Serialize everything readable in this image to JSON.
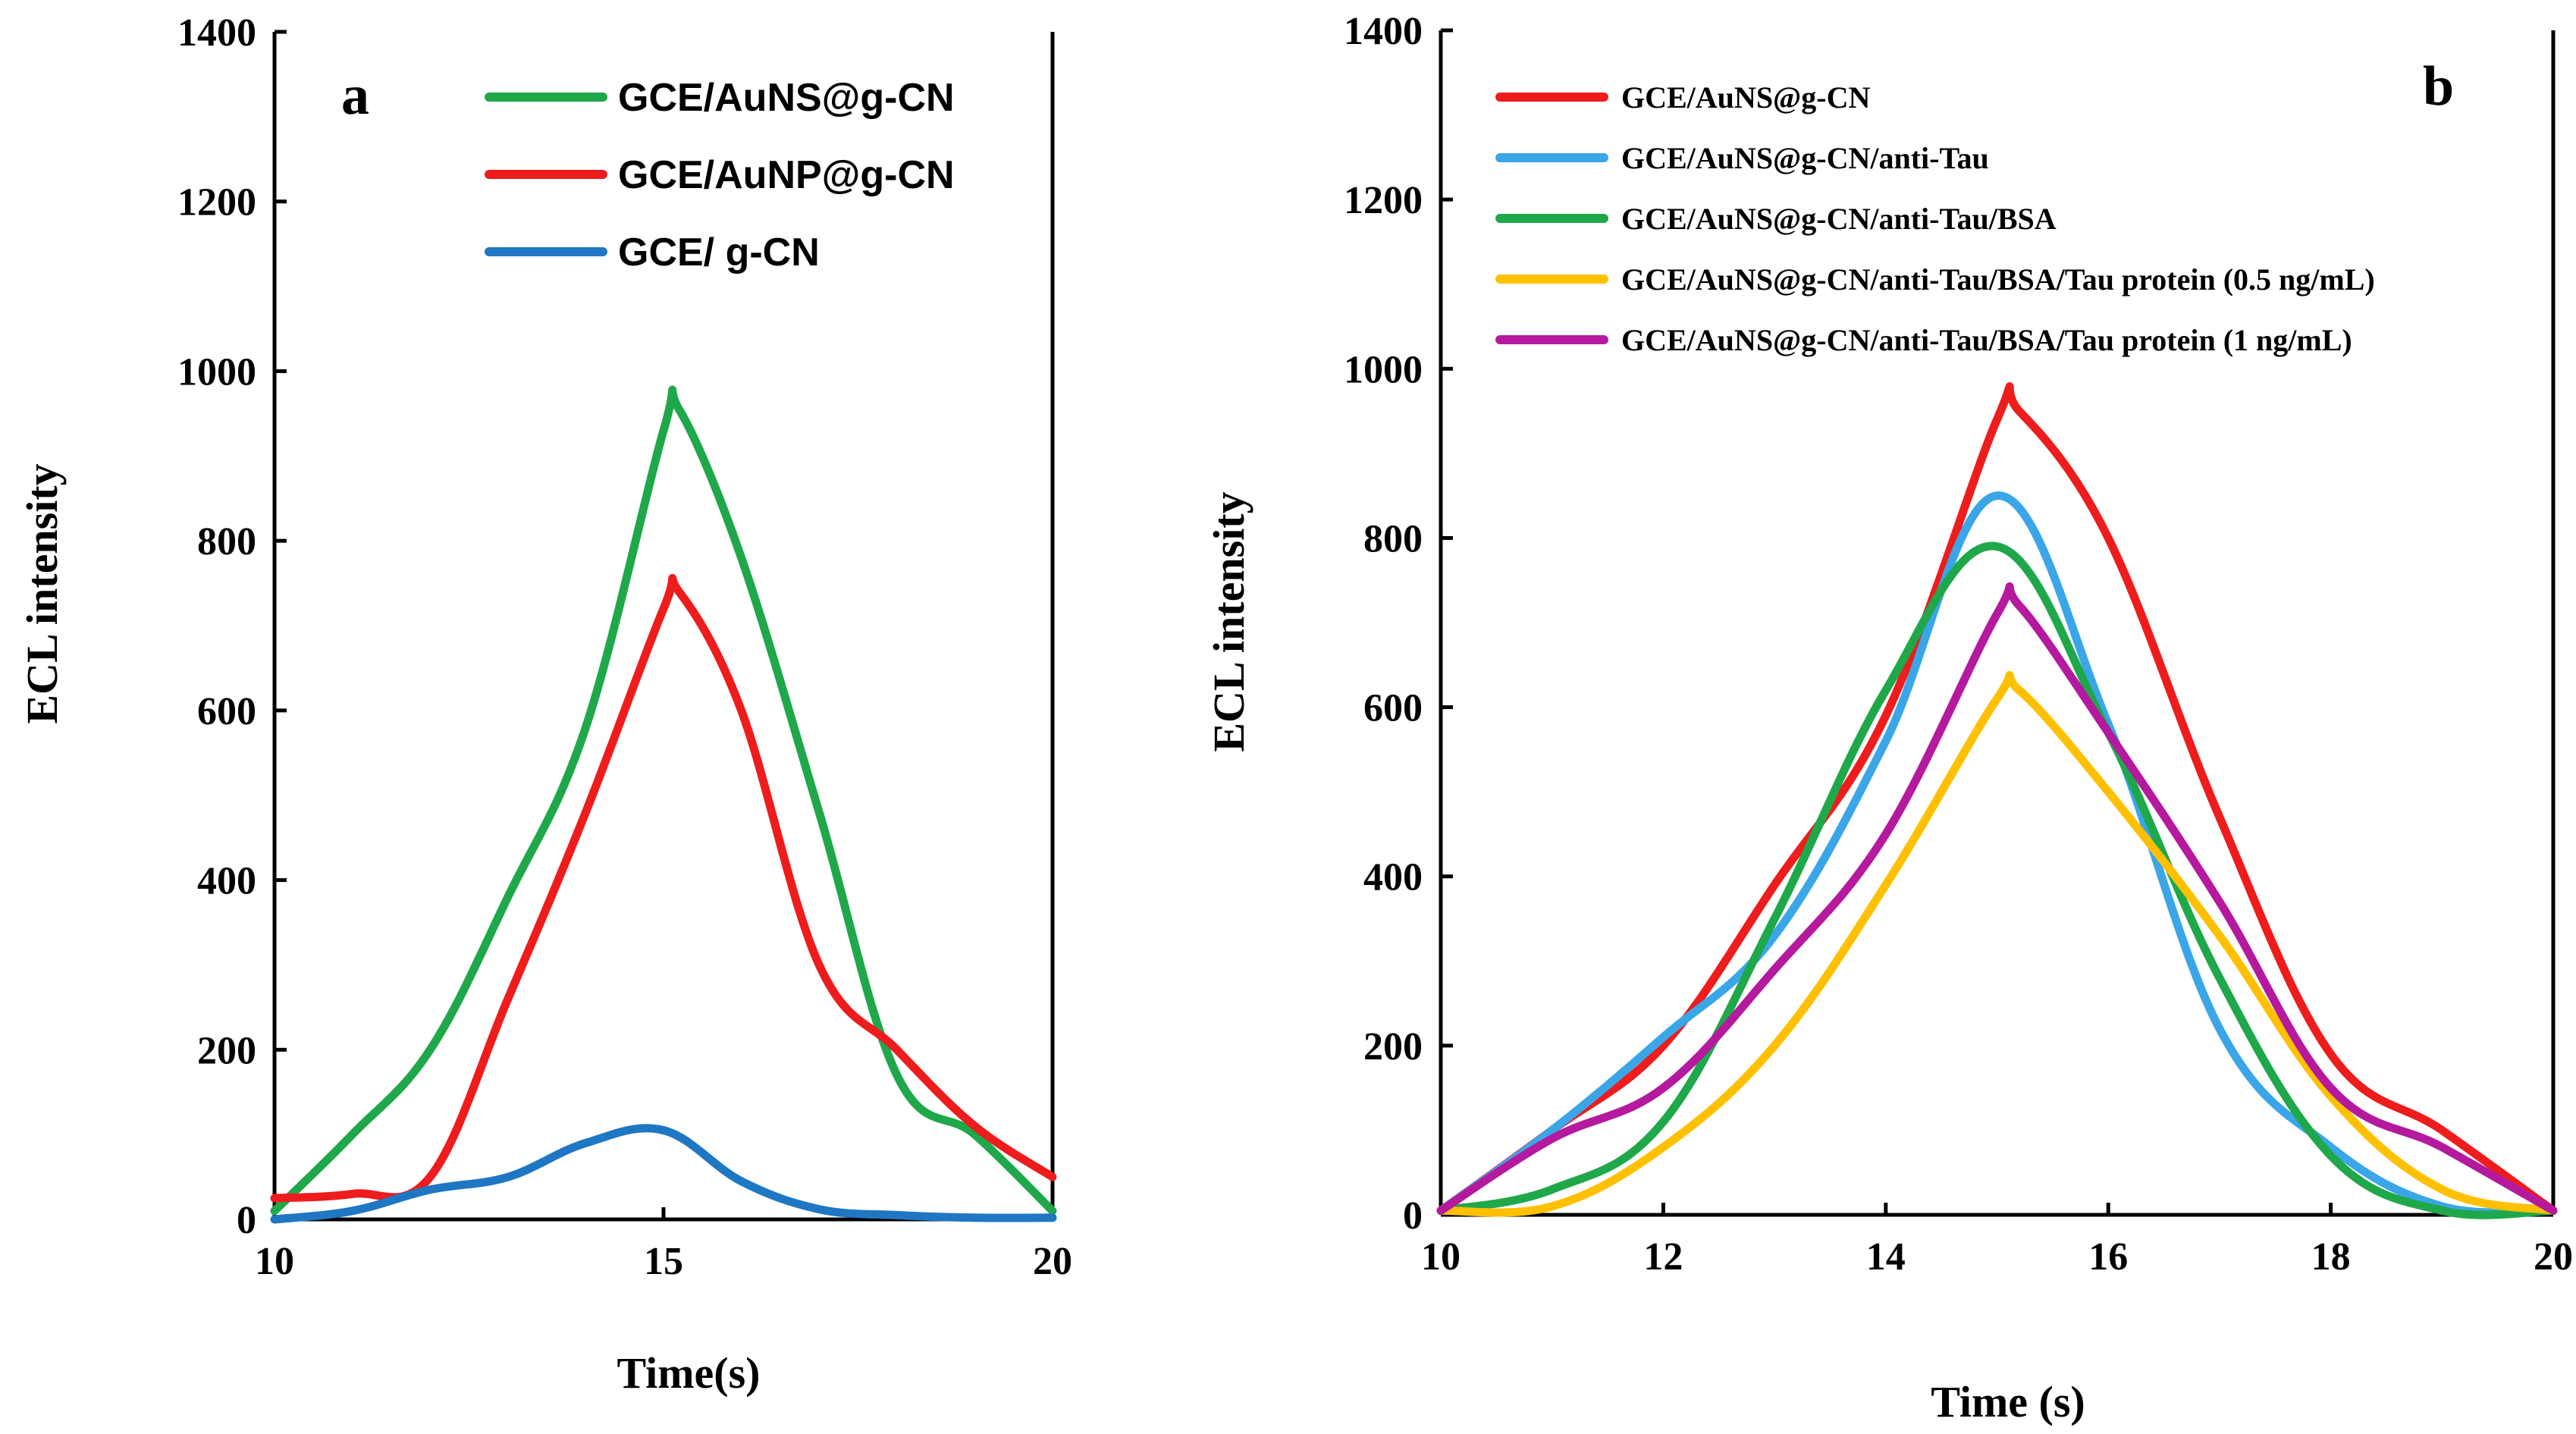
{
  "chart_data": [
    {
      "panel": "a",
      "type": "line",
      "xlabel": "Time(s)",
      "ylabel": "ECL intensity",
      "xlim": [
        10,
        20
      ],
      "ylim": [
        0,
        1400
      ],
      "xticks": [
        10,
        15,
        20
      ],
      "yticks": [
        0,
        200,
        400,
        600,
        800,
        1000,
        1200,
        1400
      ],
      "legend_position": "top-right",
      "series": [
        {
          "name": "GCE/AuNS@g-CN",
          "color": "#1fa84a",
          "x": [
            10,
            11,
            12,
            13,
            14,
            15,
            15.2,
            16,
            17,
            18,
            19,
            20
          ],
          "y": [
            10,
            100,
            200,
            380,
            580,
            930,
            955,
            780,
            480,
            170,
            100,
            10
          ]
        },
        {
          "name": "GCE/AuNP@g-CN",
          "color": "#ee1c1c",
          "x": [
            10,
            11,
            12,
            13,
            14,
            15,
            15.2,
            16,
            17,
            18,
            19,
            20
          ],
          "y": [
            25,
            30,
            50,
            260,
            480,
            720,
            740,
            600,
            300,
            200,
            110,
            50
          ]
        },
        {
          "name": "GCE/ g-CN",
          "color": "#1f77c4",
          "x": [
            10,
            11,
            12,
            13,
            14,
            15,
            16,
            17,
            18,
            19,
            20
          ],
          "y": [
            0,
            10,
            35,
            50,
            90,
            105,
            45,
            12,
            5,
            2,
            2
          ]
        }
      ]
    },
    {
      "panel": "b",
      "type": "line",
      "xlabel": "Time (s)",
      "ylabel": "ECL intensity",
      "xlim": [
        10,
        20
      ],
      "ylim": [
        0,
        1400
      ],
      "xticks": [
        10,
        12,
        14,
        16,
        18,
        20
      ],
      "yticks": [
        0,
        200,
        400,
        600,
        800,
        1000,
        1200,
        1400
      ],
      "legend_position": "top-left",
      "series": [
        {
          "name": "GCE/AuNS@g-CN",
          "color": "#ee1c1c",
          "x": [
            10,
            11,
            12,
            13,
            14,
            15,
            15.2,
            16,
            17,
            18,
            19,
            20
          ],
          "y": [
            5,
            100,
            200,
            390,
            590,
            940,
            950,
            800,
            470,
            190,
            100,
            5
          ]
        },
        {
          "name": "GCE/AuNS@g-CN/anti-Tau",
          "color": "#3aa6e8",
          "x": [
            10,
            11,
            12,
            13,
            14,
            15,
            16,
            17,
            18,
            19,
            20
          ],
          "y": [
            5,
            100,
            210,
            330,
            560,
            850,
            580,
            220,
            80,
            10,
            5
          ]
        },
        {
          "name": "GCE/AuNS@g-CN/anti-Tau/BSA",
          "color": "#1fa84a",
          "x": [
            10,
            11,
            12,
            13,
            14,
            15,
            16,
            17,
            18,
            19,
            20
          ],
          "y": [
            5,
            30,
            110,
            350,
            620,
            790,
            570,
            280,
            70,
            5,
            5
          ]
        },
        {
          "name": "GCE/AuNS@g-CN/anti-Tau/BSA/Tau protein (0.5 ng/mL)",
          "color": "#ffc000",
          "x": [
            10,
            11,
            12,
            13,
            14,
            15,
            15.2,
            16,
            17,
            18,
            19,
            20
          ],
          "y": [
            5,
            10,
            80,
            200,
            390,
            610,
            620,
            500,
            330,
            140,
            30,
            5
          ]
        },
        {
          "name": "GCE/AuNS@g-CN/anti-Tau/BSA/Tau protein (1 ng/mL)",
          "color": "#b5199e",
          "x": [
            10,
            11,
            12,
            13,
            14,
            15,
            15.2,
            16,
            17,
            18,
            19,
            20
          ],
          "y": [
            5,
            90,
            150,
            290,
            450,
            710,
            720,
            570,
            370,
            150,
            80,
            5
          ]
        }
      ]
    }
  ],
  "panel_letters": [
    "a",
    "b"
  ]
}
